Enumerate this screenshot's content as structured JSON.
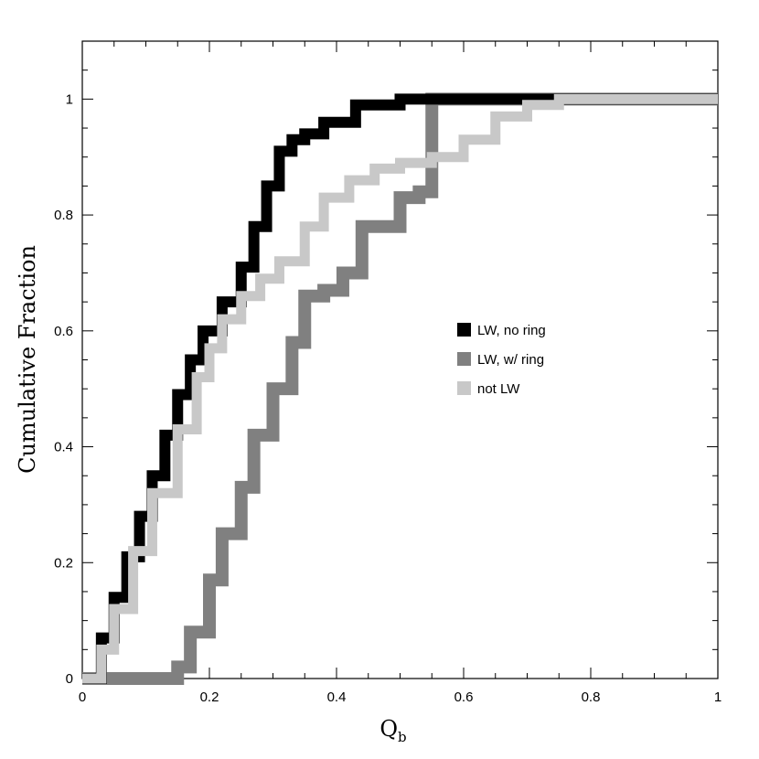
{
  "chart_data": {
    "type": "line",
    "title": "",
    "xlabel": "Q",
    "xlabel_subscript": "b",
    "ylabel": "Cumulative Fraction",
    "xlim": [
      0,
      1
    ],
    "ylim": [
      0,
      1.1
    ],
    "xticks": [
      "0",
      "0.2",
      "0.4",
      "0.6",
      "0.8",
      "1"
    ],
    "yticks": [
      "0",
      "0.2",
      "0.4",
      "0.6",
      "0.8",
      "1"
    ],
    "grid": false,
    "legend_position": "center-right",
    "series": [
      {
        "name": "LW, no ring",
        "color": "#000000",
        "x": [
          0.0,
          0.03,
          0.05,
          0.07,
          0.09,
          0.11,
          0.13,
          0.15,
          0.17,
          0.19,
          0.22,
          0.25,
          0.27,
          0.29,
          0.31,
          0.33,
          0.35,
          0.38,
          0.43,
          0.5,
          1.0
        ],
        "y": [
          0.0,
          0.07,
          0.14,
          0.21,
          0.28,
          0.35,
          0.42,
          0.49,
          0.55,
          0.6,
          0.65,
          0.71,
          0.78,
          0.85,
          0.91,
          0.93,
          0.94,
          0.96,
          0.99,
          1.0,
          1.0
        ]
      },
      {
        "name": "LW, w/ ring",
        "color": "#808080",
        "x": [
          0.0,
          0.1,
          0.15,
          0.17,
          0.2,
          0.22,
          0.25,
          0.27,
          0.3,
          0.33,
          0.35,
          0.38,
          0.41,
          0.44,
          0.5,
          0.53,
          0.55,
          1.0
        ],
        "y": [
          0.0,
          0.0,
          0.02,
          0.08,
          0.17,
          0.25,
          0.33,
          0.42,
          0.5,
          0.58,
          0.66,
          0.67,
          0.7,
          0.78,
          0.83,
          0.84,
          1.0,
          1.0
        ]
      },
      {
        "name": "not LW",
        "color": "#c8c8c8",
        "x": [
          0.0,
          0.03,
          0.05,
          0.08,
          0.11,
          0.15,
          0.18,
          0.2,
          0.22,
          0.25,
          0.28,
          0.31,
          0.35,
          0.38,
          0.42,
          0.46,
          0.5,
          0.55,
          0.6,
          0.65,
          0.7,
          0.75,
          0.8,
          1.0
        ],
        "y": [
          0.0,
          0.05,
          0.12,
          0.22,
          0.32,
          0.43,
          0.52,
          0.57,
          0.62,
          0.66,
          0.69,
          0.72,
          0.78,
          0.83,
          0.86,
          0.88,
          0.89,
          0.9,
          0.93,
          0.97,
          0.99,
          1.0,
          1.0,
          1.0
        ]
      }
    ]
  }
}
